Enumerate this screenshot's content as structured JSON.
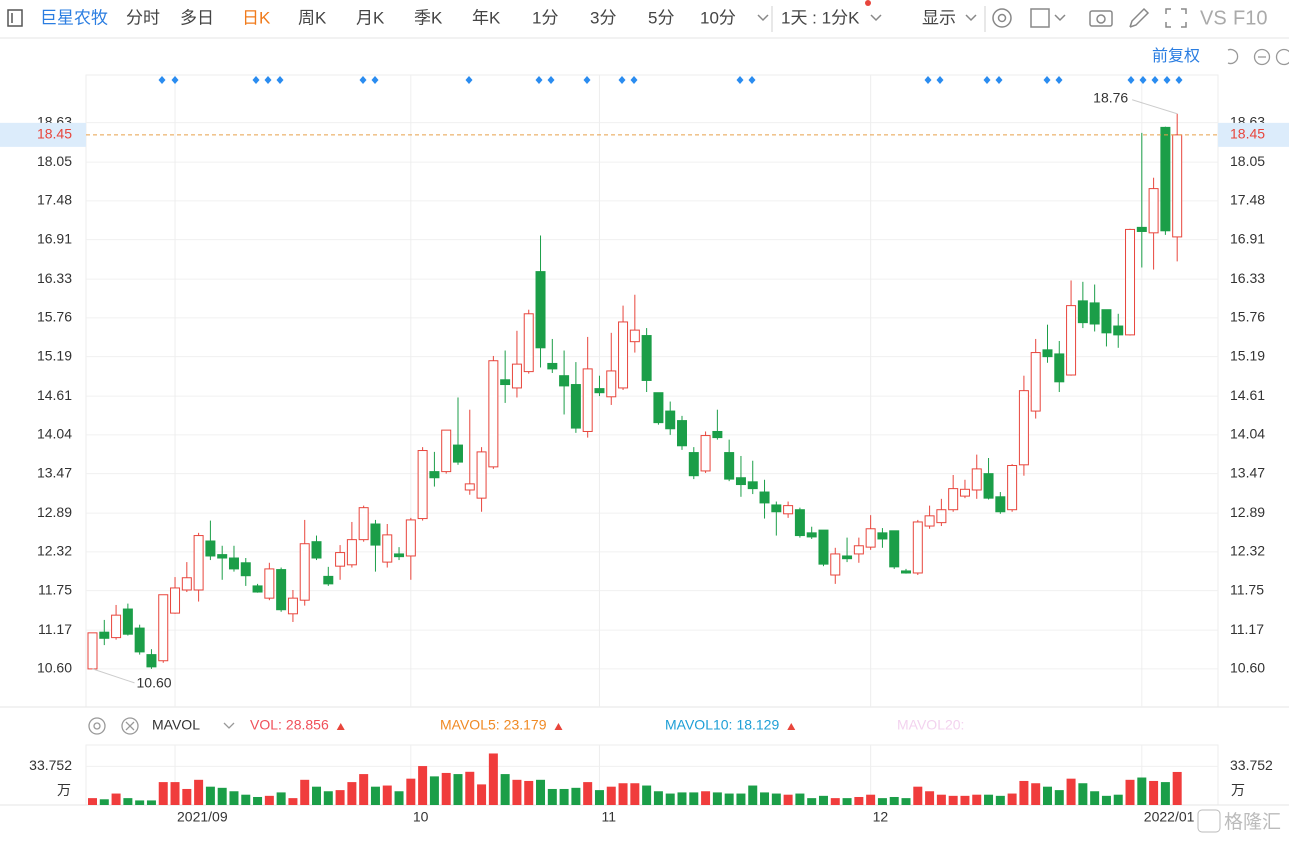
{
  "toolbar": {
    "stock": "巨星农牧",
    "periods": [
      "分时",
      "多日",
      "日K",
      "周K",
      "月K",
      "季K",
      "年K",
      "1分",
      "3分",
      "5分",
      "10分"
    ],
    "active": 2,
    "range": "1天 : 1分K",
    "display": "显示",
    "vs": "VS",
    "f10": "F10"
  },
  "adjust": "前复权",
  "watermark": "格隆汇",
  "chart_data": {
    "type": "candlestick",
    "categories": [
      null,
      null,
      null,
      null,
      null,
      null,
      null,
      "2021/09",
      null,
      null,
      null,
      null,
      null,
      null,
      null,
      null,
      null,
      null,
      null,
      null,
      null,
      null,
      null,
      null,
      null,
      null,
      null,
      "10",
      null,
      null,
      null,
      null,
      null,
      null,
      null,
      null,
      null,
      null,
      null,
      null,
      null,
      null,
      null,
      "11",
      null,
      null,
      null,
      null,
      null,
      null,
      null,
      null,
      null,
      null,
      null,
      null,
      null,
      null,
      null,
      null,
      null,
      null,
      null,
      null,
      null,
      null,
      "12",
      null,
      null,
      null,
      null,
      null,
      null,
      null,
      null,
      null,
      null,
      null,
      null,
      null,
      null,
      null,
      null,
      null,
      null,
      null,
      null,
      null,
      null,
      "2022/01",
      null,
      null,
      null
    ],
    "open": [
      10.6,
      11.14,
      11.06,
      11.48,
      11.2,
      10.81,
      10.72,
      11.42,
      11.76,
      11.76,
      12.48,
      12.28,
      12.23,
      12.16,
      11.82,
      11.64,
      12.06,
      11.41,
      11.61,
      12.47,
      11.96,
      12.11,
      12.13,
      12.5,
      12.73,
      12.17,
      12.29,
      12.26,
      12.81,
      13.5,
      13.5,
      13.89,
      13.23,
      13.11,
      13.57,
      14.85,
      14.73,
      14.97,
      16.44,
      15.09,
      14.91,
      14.78,
      14.09,
      14.72,
      14.6,
      14.73,
      15.41,
      15.5,
      14.66,
      14.39,
      14.25,
      13.78,
      13.51,
      14.09,
      13.78,
      13.41,
      13.35,
      13.2,
      13.01,
      12.88,
      12.94,
      12.6,
      12.64,
      11.98,
      12.26,
      12.29,
      12.39,
      12.6,
      12.63,
      12.04,
      12.01,
      12.7,
      12.75,
      12.94,
      13.14,
      13.23,
      13.47,
      13.13,
      12.94,
      13.6,
      14.39,
      15.29,
      15.23,
      14.92,
      16.01,
      15.98,
      15.88,
      15.64,
      15.51,
      17.09,
      17.01,
      18.56,
      16.95
    ],
    "high": [
      11.13,
      11.32,
      11.54,
      11.56,
      11.25,
      10.89,
      11.69,
      11.95,
      12.17,
      12.6,
      12.78,
      12.41,
      12.41,
      12.23,
      11.85,
      12.16,
      12.09,
      11.76,
      12.79,
      12.56,
      12.1,
      12.42,
      12.76,
      13.0,
      12.79,
      12.73,
      12.39,
      12.82,
      13.86,
      13.79,
      14.11,
      14.59,
      14.41,
      13.86,
      15.2,
      15.28,
      15.57,
      15.88,
      16.97,
      15.45,
      15.28,
      15.11,
      15.48,
      14.91,
      15.54,
      15.94,
      16.1,
      15.61,
      14.66,
      14.53,
      14.32,
      13.86,
      14.09,
      14.41,
      13.97,
      13.73,
      13.66,
      13.38,
      13.06,
      13.06,
      12.97,
      12.69,
      12.64,
      12.38,
      12.53,
      12.53,
      12.86,
      12.67,
      12.63,
      12.07,
      12.79,
      13.0,
      13.1,
      13.45,
      13.38,
      13.75,
      13.7,
      13.2,
      13.61,
      14.91,
      15.45,
      15.66,
      15.42,
      16.31,
      16.29,
      16.25,
      15.88,
      15.82,
      17.07,
      18.48,
      17.82,
      18.57,
      18.76
    ],
    "low": [
      10.6,
      10.95,
      11.03,
      11.09,
      10.81,
      10.6,
      10.69,
      11.41,
      11.73,
      11.59,
      12.2,
      11.91,
      12.03,
      11.82,
      11.72,
      11.61,
      11.44,
      11.29,
      11.53,
      12.2,
      11.82,
      11.91,
      12.09,
      12.47,
      12.03,
      12.09,
      12.2,
      11.91,
      12.78,
      13.28,
      13.47,
      13.6,
      13.16,
      12.91,
      13.54,
      14.51,
      14.59,
      14.94,
      15.03,
      14.95,
      14.34,
      14.07,
      14.0,
      14.61,
      14.48,
      14.7,
      15.25,
      14.67,
      14.19,
      14.04,
      13.82,
      13.39,
      13.48,
      13.97,
      13.36,
      13.13,
      13.17,
      12.81,
      12.56,
      12.82,
      12.53,
      12.51,
      12.11,
      11.85,
      12.17,
      12.16,
      12.35,
      12.38,
      12.07,
      12.0,
      11.98,
      12.66,
      12.7,
      12.91,
      13.11,
      13.1,
      13.09,
      12.88,
      12.91,
      13.44,
      14.28,
      15.1,
      14.67,
      14.91,
      15.61,
      15.56,
      15.34,
      15.32,
      15.5,
      16.5,
      16.47,
      16.98,
      16.59
    ],
    "close": [
      11.13,
      11.05,
      11.39,
      11.11,
      10.85,
      10.63,
      11.69,
      11.79,
      11.94,
      12.56,
      12.26,
      12.23,
      12.07,
      11.97,
      11.73,
      12.07,
      11.47,
      11.64,
      12.44,
      12.23,
      11.85,
      12.31,
      12.5,
      12.97,
      12.42,
      12.57,
      12.25,
      12.79,
      13.81,
      13.41,
      14.11,
      13.64,
      13.32,
      13.79,
      15.13,
      14.78,
      15.08,
      15.82,
      15.32,
      15.01,
      14.76,
      14.14,
      15.01,
      14.66,
      14.98,
      15.7,
      15.58,
      14.84,
      14.22,
      14.13,
      13.88,
      13.44,
      14.03,
      14.0,
      13.39,
      13.31,
      13.25,
      13.04,
      12.91,
      13.0,
      12.56,
      12.54,
      12.14,
      12.29,
      12.22,
      12.41,
      12.66,
      12.51,
      12.1,
      12.01,
      12.76,
      12.85,
      12.94,
      13.25,
      13.24,
      13.54,
      13.11,
      12.91,
      13.59,
      14.69,
      15.25,
      15.19,
      14.82,
      15.94,
      15.69,
      15.67,
      15.54,
      15.51,
      17.06,
      17.03,
      17.66,
      17.04,
      18.45
    ],
    "up_color": "#e8453c",
    "down_color": "#1b9e48",
    "ylim": [
      10.04,
      19.33
    ],
    "yticks": [
      {
        "value": 10.6,
        "label": "10.60"
      },
      11.17,
      11.75,
      12.32,
      12.89,
      13.47,
      14.04,
      14.61,
      15.19,
      15.76,
      16.33,
      16.91,
      17.48,
      18.05,
      18.63
    ],
    "grid": true,
    "last_price": 18.45,
    "high_label": 18.76,
    "low_label": {
      "value": 10.6,
      "label": "10.60"
    },
    "volume": {
      "indicator": "MAVOL",
      "values": [
        6,
        5,
        10,
        6,
        4,
        4,
        20,
        20,
        14,
        22,
        16,
        15,
        12,
        9,
        7,
        8,
        11,
        6,
        22,
        16,
        12,
        13,
        20,
        27,
        16,
        17,
        12,
        23,
        34,
        25,
        28,
        27,
        29,
        18,
        45,
        27,
        22,
        21,
        22,
        14,
        14,
        15,
        20,
        13,
        16,
        19,
        19,
        17,
        12,
        10,
        11,
        11,
        12,
        11,
        10,
        10,
        17,
        11,
        10,
        9,
        10,
        6,
        8,
        6,
        6,
        7,
        9,
        6,
        7,
        6,
        16,
        12,
        9,
        8,
        8,
        9,
        9,
        8,
        10,
        21,
        19,
        16,
        13,
        23,
        19,
        12,
        8,
        9,
        22,
        24,
        21,
        20,
        28.856
      ],
      "ylim": [
        0,
        52.4
      ],
      "yticks": [
        33.752
      ],
      "unit": "万",
      "legend": [
        {
          "label": "VOL:",
          "value": 28.856,
          "color": "#f0505a"
        },
        {
          "label": "MAVOL5:",
          "value": 23.179,
          "color": "#f08a24"
        },
        {
          "label": "MAVOL10:",
          "value": 18.129,
          "color": "#1e9fd6"
        },
        {
          "label": "MAVOL20:",
          "color": "#f3d3ef"
        }
      ]
    }
  }
}
